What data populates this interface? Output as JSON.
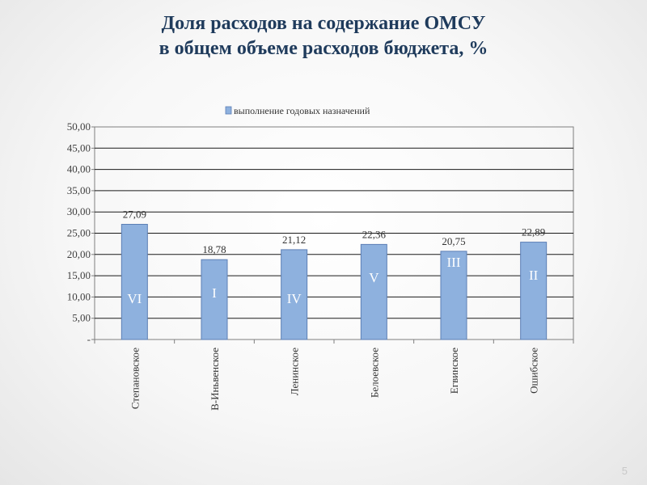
{
  "slide": {
    "title_line1": "Доля расходов на содержание ОМСУ",
    "title_line2": "в общем объеме расходов бюджета, %",
    "page_number": "5"
  },
  "colors": {
    "title": "#1f3b5c",
    "bar_fill": "#8eb1de",
    "bar_stroke": "#5c7fb5",
    "rank_label": "#ffffff"
  },
  "chart_data": {
    "type": "bar",
    "title": "",
    "xlabel": "",
    "ylabel": "",
    "categories": [
      "Степановское",
      "В-Иньвенское",
      "Ленинское",
      "Белоевское",
      "Егвинское",
      "Ошибское"
    ],
    "series": [
      {
        "name": "выполнение годовых назначений",
        "values": [
          27.09,
          18.78,
          21.12,
          22.36,
          20.75,
          22.89
        ],
        "value_labels": [
          "27,09",
          "18,78",
          "21,12",
          "22,36",
          "20,75",
          "22,89"
        ],
        "rank_labels": [
          "VI",
          "I",
          "IV",
          "V",
          "III",
          "II"
        ]
      }
    ],
    "ylim": [
      0,
      50
    ],
    "y_ticks": [
      0,
      5,
      10,
      15,
      20,
      25,
      30,
      35,
      40,
      45,
      50
    ],
    "y_tick_labels": [
      "-",
      "5,00",
      "10,00",
      "15,00",
      "20,00",
      "25,00",
      "30,00",
      "35,00",
      "40,00",
      "45,00",
      "50,00"
    ],
    "grid": true,
    "legend_position": "top"
  }
}
